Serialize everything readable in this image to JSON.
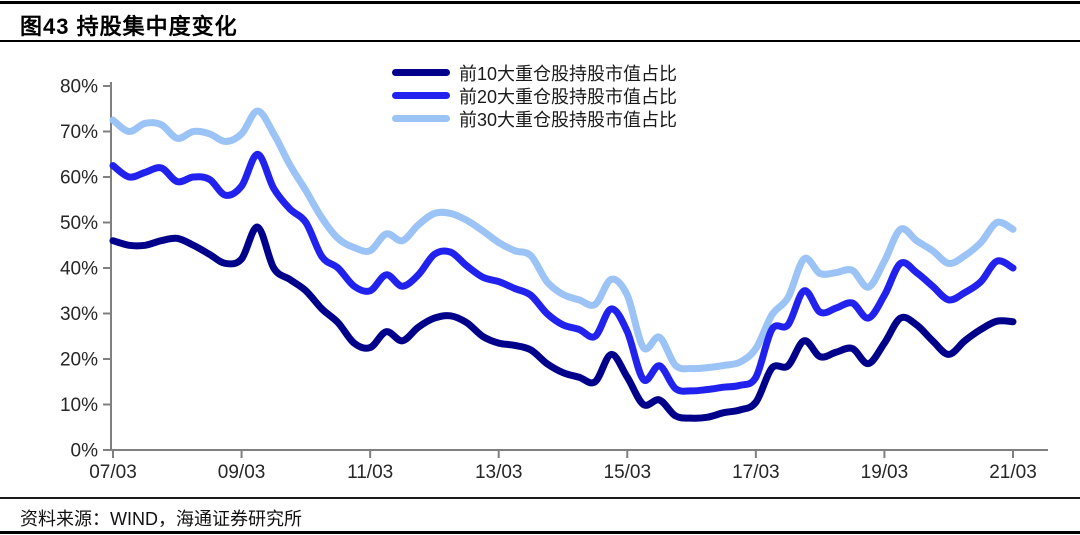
{
  "title": "图43 持股集中度变化",
  "source": "资料来源：WIND，海通证券研究所",
  "colors": {
    "series10": "#00008B",
    "series20": "#2222EE",
    "series30": "#9CC3F5",
    "axis": "#808080",
    "tick_label": "#262626"
  },
  "chart_data": {
    "type": "line",
    "title": "图43 持股集中度变化",
    "xlabel": "",
    "ylabel": "",
    "ylim": [
      0,
      80
    ],
    "grid": false,
    "legend_position": "top-center",
    "y_tick_labels": [
      "0%",
      "10%",
      "20%",
      "30%",
      "40%",
      "50%",
      "60%",
      "70%",
      "80%"
    ],
    "x_tick_labels": [
      "07/03",
      "09/03",
      "11/03",
      "13/03",
      "15/03",
      "17/03",
      "19/03",
      "21/03"
    ],
    "x_tick_indices": [
      0,
      8,
      16,
      24,
      32,
      40,
      48,
      56
    ],
    "x": [
      "07/03",
      "07/06",
      "07/09",
      "07/12",
      "08/03",
      "08/06",
      "08/09",
      "08/12",
      "09/03",
      "09/06",
      "09/09",
      "09/12",
      "10/03",
      "10/06",
      "10/09",
      "10/12",
      "11/03",
      "11/06",
      "11/09",
      "11/12",
      "12/03",
      "12/06",
      "12/09",
      "12/12",
      "13/03",
      "13/06",
      "13/09",
      "13/12",
      "14/03",
      "14/06",
      "14/09",
      "14/12",
      "15/03",
      "15/06",
      "15/09",
      "15/12",
      "16/03",
      "16/06",
      "16/09",
      "16/12",
      "17/03",
      "17/06",
      "17/09",
      "17/12",
      "18/03",
      "18/06",
      "18/09",
      "18/12",
      "19/03",
      "19/06",
      "19/09",
      "19/12",
      "20/03",
      "20/06",
      "20/09",
      "20/12",
      "21/03"
    ],
    "series": [
      {
        "name": "前30大重仓股持股市值占比",
        "color": "#9CC3F5",
        "values": [
          72.5,
          70,
          71.8,
          71.5,
          68.5,
          70,
          69.5,
          67.8,
          69.5,
          74.5,
          69.5,
          62.7,
          57,
          51,
          46.5,
          44.5,
          43.8,
          47.5,
          46,
          49.5,
          52,
          52,
          50.5,
          48.2,
          45.6,
          43.8,
          42.7,
          37,
          34.2,
          33,
          32,
          37.5,
          34,
          22.5,
          24.8,
          18.6,
          17.9,
          18.1,
          18.6,
          19.3,
          22.3,
          29.7,
          33.5,
          42,
          38.8,
          39,
          39.5,
          35.8,
          41.5,
          48.5,
          46,
          43.8,
          41,
          42.7,
          45.6,
          50,
          48.5
        ]
      },
      {
        "name": "前20大重仓股持股市值占比",
        "color": "#2222EE",
        "values": [
          62.5,
          60,
          61,
          62,
          59,
          60,
          59.5,
          56,
          58,
          65,
          57.5,
          53,
          50,
          42.5,
          40,
          36,
          35,
          38.5,
          36,
          38.5,
          43,
          43.5,
          40.5,
          38,
          37,
          35.5,
          34,
          30,
          27.5,
          26.5,
          25,
          31,
          26,
          15.5,
          18.5,
          13.5,
          13,
          13.3,
          13.8,
          14.2,
          16,
          26.5,
          27.5,
          35,
          30.3,
          31.2,
          32.3,
          29,
          34,
          41,
          39,
          36,
          33,
          34.6,
          37,
          41.5,
          40
        ]
      },
      {
        "name": "前10大重仓股持股市值占比",
        "color": "#00008B",
        "values": [
          46,
          45,
          45,
          46,
          46.5,
          45,
          43,
          41,
          42,
          49,
          40,
          37.5,
          35,
          31,
          28,
          23.5,
          22.5,
          26,
          24,
          27,
          29,
          29.5,
          28,
          25,
          23.5,
          23,
          22,
          19,
          17,
          16,
          15,
          21,
          16,
          10,
          11,
          7.5,
          7,
          7.2,
          8.2,
          8.8,
          10.5,
          18,
          18.5,
          24,
          20.5,
          21.5,
          22.3,
          19,
          23.5,
          29,
          27.5,
          24,
          21,
          24,
          26.5,
          28.3,
          28.2
        ]
      }
    ],
    "legend_order_top_to_bottom": [
      "前10大重仓股持股市值占比",
      "前20大重仓股持股市值占比",
      "前30大重仓股持股市值占比"
    ]
  }
}
